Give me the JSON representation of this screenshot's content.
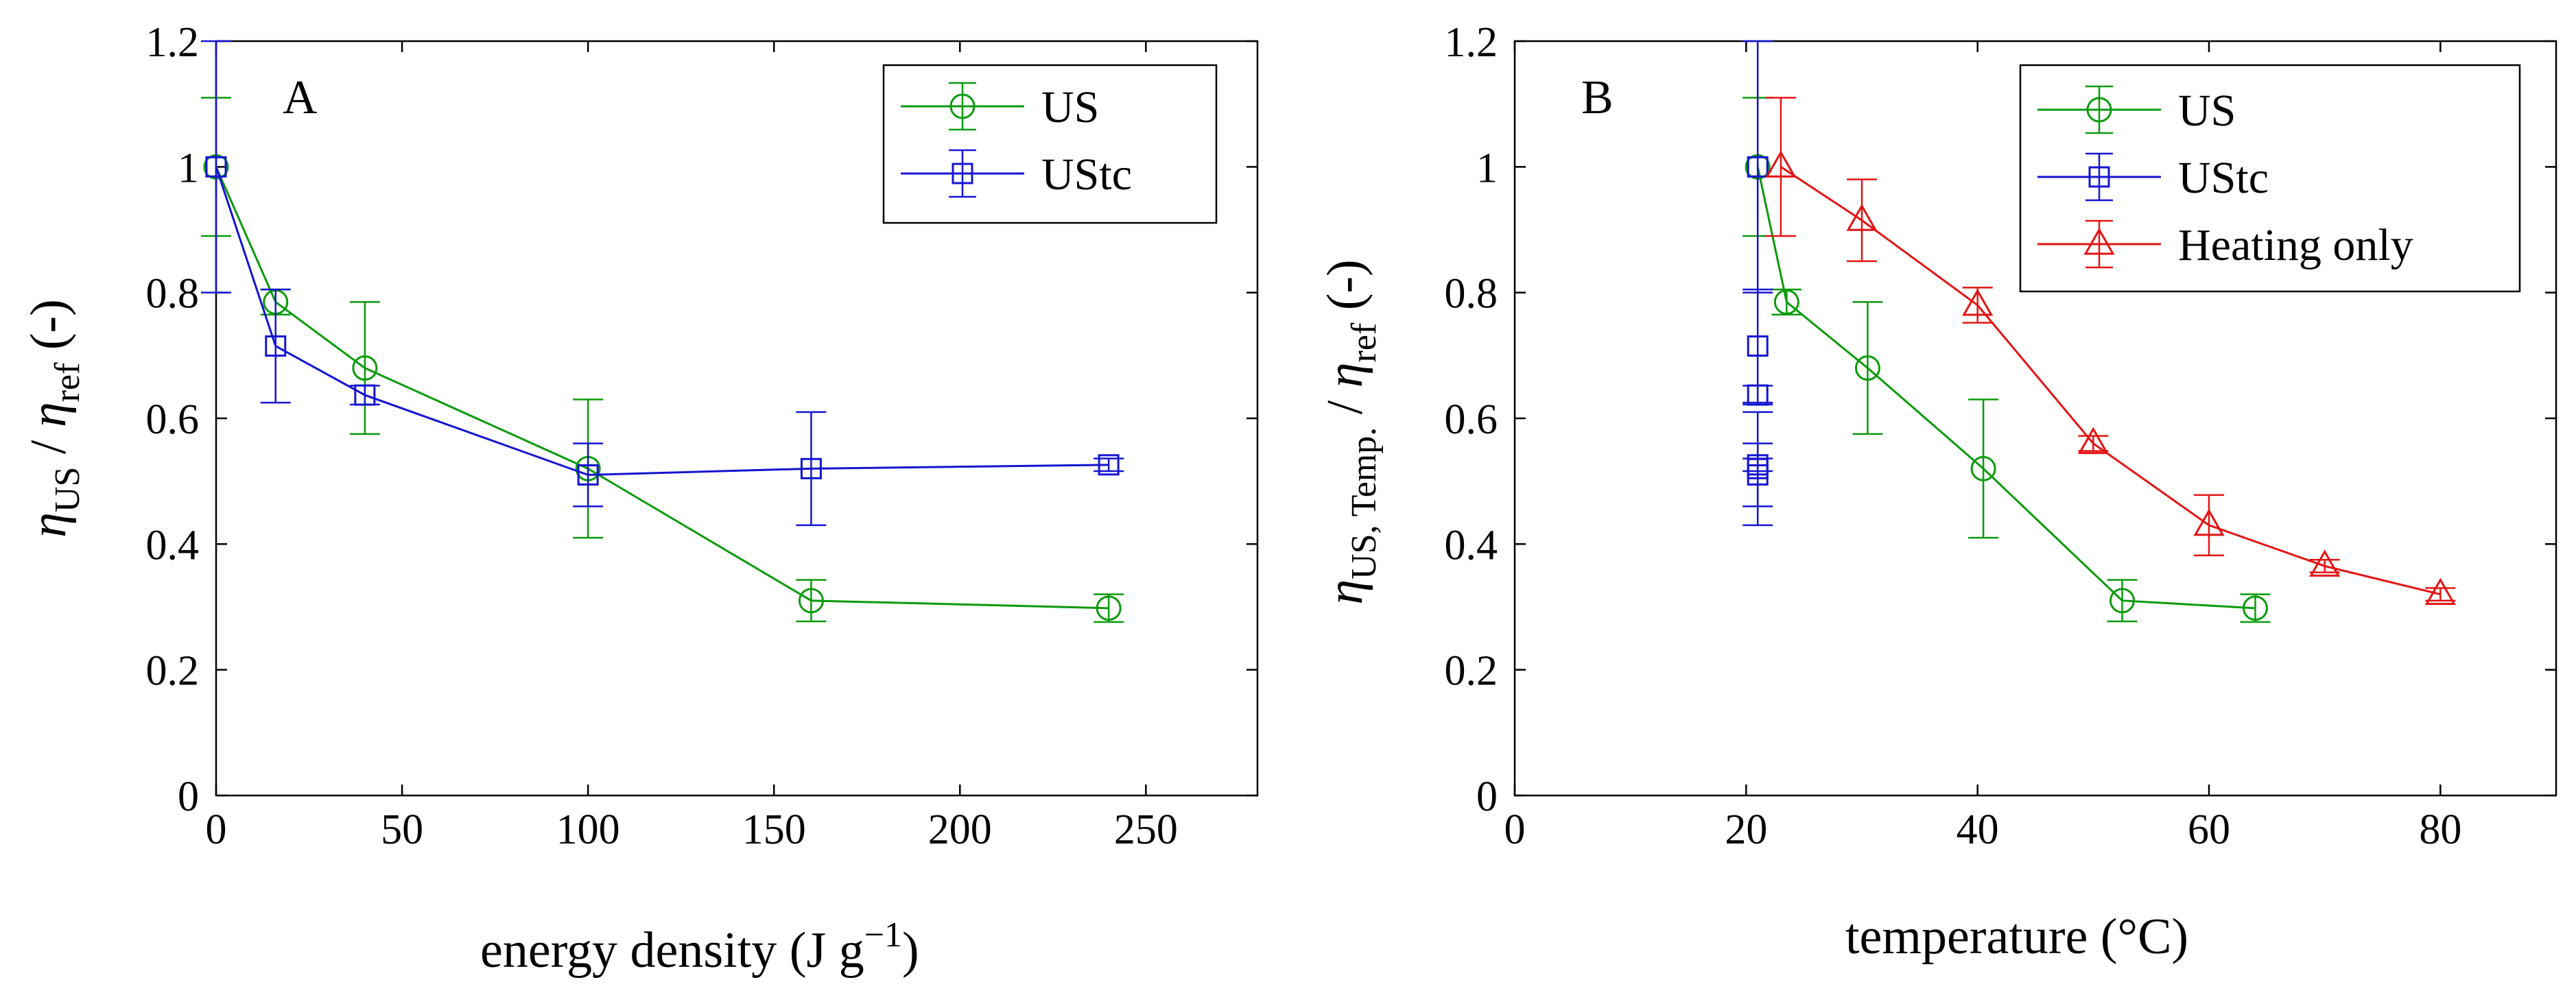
{
  "chart_data": [
    {
      "type": "line",
      "panel_label": "A",
      "xlabel": "energy density (J g",
      "xlabel_sup": "−1",
      "xlabel_tail": ")",
      "ylabel": {
        "eta": "η",
        "num_sub": "US",
        "slash": " / ",
        "den_sub": "ref",
        "unit": " (-)"
      },
      "xlim": [
        0,
        280
      ],
      "ylim": [
        0,
        1.2
      ],
      "xticks": [
        0,
        50,
        100,
        150,
        200,
        250
      ],
      "yticks": [
        0,
        0.2,
        0.4,
        0.6,
        0.8,
        1,
        1.2
      ],
      "ytick_labels": [
        "0",
        "0.2",
        "0.4",
        "0.6",
        "0.8",
        "1",
        "1.2"
      ],
      "legend_position": "top-right",
      "series": [
        {
          "name": "US",
          "color": "#0a9a0a",
          "marker": "circle",
          "x": [
            0,
            16,
            40,
            100,
            160,
            240
          ],
          "y": [
            1,
            0.785,
            0.68,
            0.52,
            0.31,
            0.298
          ],
          "err": [
            0.11,
            0.02,
            0.105,
            0.11,
            0.033,
            0.022
          ]
        },
        {
          "name": "UStc",
          "color": "#1414d2",
          "marker": "square",
          "x": [
            0,
            16,
            40,
            100,
            160,
            240
          ],
          "y": [
            1,
            0.715,
            0.637,
            0.51,
            0.52,
            0.526
          ],
          "err": [
            0.2,
            0.09,
            0.015,
            0.05,
            0.09,
            0.01
          ]
        }
      ]
    },
    {
      "type": "line",
      "panel_label": "B",
      "xlabel": "temperature (°C)",
      "ylabel": {
        "eta": "η",
        "num_sub": "US, Temp.",
        "slash": " / ",
        "den_sub": "ref",
        "unit": " (-)"
      },
      "xlim": [
        0,
        90
      ],
      "ylim": [
        0,
        1.2
      ],
      "xticks": [
        0,
        20,
        40,
        60,
        80
      ],
      "yticks": [
        0,
        0.2,
        0.4,
        0.6,
        0.8,
        1,
        1.2
      ],
      "ytick_labels": [
        "0",
        "0.2",
        "0.4",
        "0.6",
        "0.8",
        "1",
        "1.2"
      ],
      "legend_position": "top-right",
      "series": [
        {
          "name": "US",
          "color": "#0a9a0a",
          "marker": "circle",
          "x": [
            21,
            23.5,
            30.5,
            40.5,
            52.5,
            64
          ],
          "y": [
            1,
            0.785,
            0.68,
            0.52,
            0.31,
            0.298
          ],
          "err": [
            0.11,
            0.02,
            0.105,
            0.11,
            0.033,
            0.022
          ]
        },
        {
          "name": "UStc",
          "color": "#1414d2",
          "marker": "square",
          "no_line": true,
          "x": [
            21,
            21,
            21,
            21,
            21,
            21
          ],
          "y": [
            1,
            0.715,
            0.637,
            0.51,
            0.52,
            0.526
          ],
          "err": [
            0.2,
            0.09,
            0.015,
            0.05,
            0.09,
            0.01
          ]
        },
        {
          "name": "Heating only",
          "color": "#e31414",
          "marker": "triangle",
          "x": [
            23,
            30,
            40,
            50,
            60,
            70,
            80
          ],
          "y": [
            1,
            0.915,
            0.78,
            0.56,
            0.43,
            0.365,
            0.32
          ],
          "err": [
            0.11,
            0.065,
            0.028,
            0.012,
            0.048,
            0.01,
            0.01
          ]
        }
      ]
    }
  ]
}
